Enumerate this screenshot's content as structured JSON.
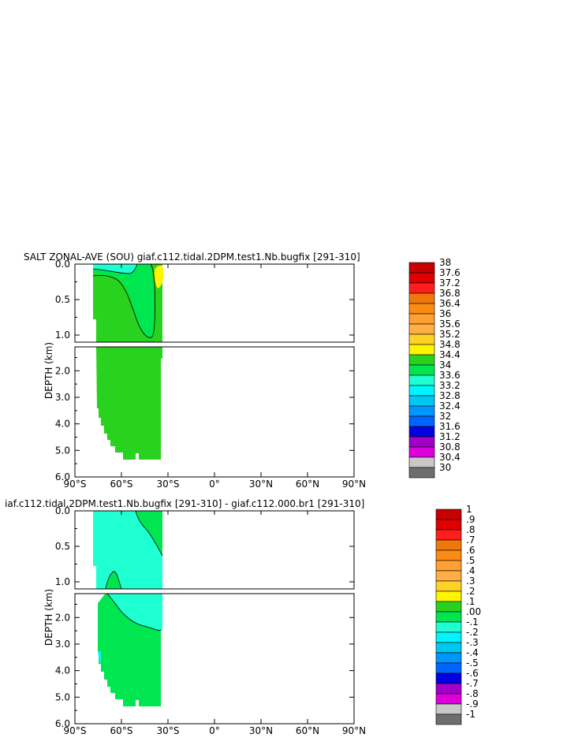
{
  "chart_data": [
    {
      "type": "heatmap",
      "title": "SALT ZONAL-AVE (SOU) giaf.c112.tidal.2DPM.test1.Nb.bugfix [291-310]",
      "ylabel": "DEPTH (km)",
      "x_range": [
        -90,
        90
      ],
      "x_ticks": [
        "90°S",
        "60°S",
        "30°S",
        "0°",
        "30°N",
        "60°N",
        "90°N"
      ],
      "y_ticks": [
        "0.0",
        "0.5",
        "1.0",
        "2.0",
        "3.0",
        "4.0",
        "5.0",
        "6.0"
      ],
      "y_range_upper_km": [
        0,
        1.1
      ],
      "y_range_lower_km": [
        1.1,
        6.0
      ],
      "legend_position": "right",
      "colorbar_labels": [
        "38",
        "37.6",
        "37.2",
        "36.8",
        "36.4",
        "36",
        "35.6",
        "35.2",
        "34.8",
        "34.4",
        "34",
        "33.6",
        "33.2",
        "32.8",
        "32.4",
        "32",
        "31.6",
        "31.2",
        "30.8",
        "30.4",
        "30"
      ],
      "colorbar_colors": [
        "#c80000",
        "#e00000",
        "#ff1e1e",
        "#f0780a",
        "#fa8c14",
        "#ffa032",
        "#ffaf46",
        "#ffd228",
        "#fff500",
        "#28d21e",
        "#00e650",
        "#1effd2",
        "#00f5ff",
        "#00c8f0",
        "#0096ff",
        "#0064ff",
        "#0000e1",
        "#a000c8",
        "#dc00dc",
        "#c8c8c8",
        "#6e6e6e"
      ]
    },
    {
      "type": "heatmap",
      "title": "iaf.c112.tidal.2DPM.test1.Nb.bugfix [291-310] - giaf.c112.000.br1 [291-310]",
      "ylabel": "DEPTH (km)",
      "x_range": [
        -90,
        90
      ],
      "x_ticks": [
        "90°S",
        "60°S",
        "30°S",
        "0°",
        "30°N",
        "60°N",
        "90°N"
      ],
      "y_ticks": [
        "0.0",
        "0.5",
        "1.0",
        "2.0",
        "3.0",
        "4.0",
        "5.0",
        "6.0"
      ],
      "y_range_upper_km": [
        0,
        1.1
      ],
      "y_range_lower_km": [
        1.1,
        6.0
      ],
      "legend_position": "right",
      "colorbar_labels": [
        "1",
        ".9",
        ".8",
        ".7",
        ".6",
        ".5",
        ".4",
        ".3",
        ".2",
        ".1",
        ".00",
        "-.1",
        "-.2",
        "-.3",
        "-.4",
        "-.5",
        "-.6",
        "-.7",
        "-.8",
        "-.9",
        "-1"
      ],
      "colorbar_colors": [
        "#c80000",
        "#e00000",
        "#ff1e1e",
        "#f0780a",
        "#fa8c14",
        "#ffa032",
        "#ffaf46",
        "#ffd228",
        "#fff500",
        "#28d21e",
        "#00e650",
        "#1effd2",
        "#00f5ff",
        "#00c8f0",
        "#0096ff",
        "#0064ff",
        "#0000e1",
        "#a000c8",
        "#dc00dc",
        "#c8c8c8",
        "#6e6e6e"
      ]
    }
  ]
}
